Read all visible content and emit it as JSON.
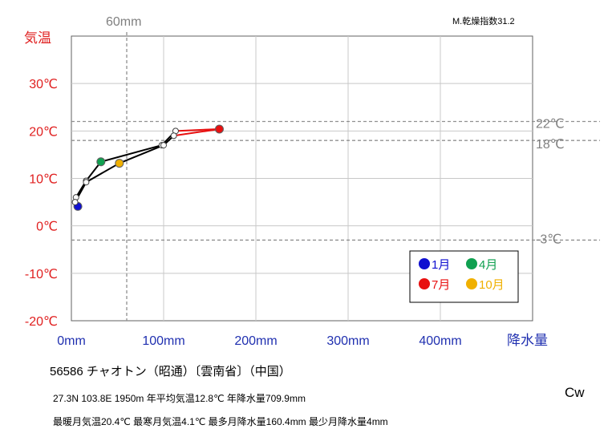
{
  "chart_data": {
    "type": "line",
    "title": "",
    "xlabel": "降水量",
    "ylabel": "気温",
    "xlim": [
      0,
      500
    ],
    "ylim": [
      -20,
      40
    ],
    "x_ticks": [
      "0mm",
      "100mm",
      "200mm",
      "300mm",
      "400mm"
    ],
    "x_tick_values": [
      0,
      100,
      200,
      300,
      400
    ],
    "y_ticks": [
      "30℃",
      "20℃",
      "10℃",
      "0℃",
      "-10℃",
      "-20℃"
    ],
    "y_tick_values": [
      30,
      20,
      10,
      0,
      -10,
      -20
    ],
    "grid": true,
    "aridity_label": "M.乾燥指数31.2",
    "reference_lines": {
      "vertical": [
        {
          "value": 60,
          "label": "60mm"
        }
      ],
      "horizontal": [
        {
          "value": 22,
          "label": "22℃"
        },
        {
          "value": 18,
          "label": "18℃"
        },
        {
          "value": -3,
          "label": "-3℃"
        }
      ]
    },
    "series": [
      {
        "points": [
          {
            "month": 1,
            "precip": 7,
            "temp": 4.1
          },
          {
            "month": 2,
            "precip": 5,
            "temp": 6.0
          },
          {
            "month": 3,
            "precip": 16,
            "temp": 9.5
          },
          {
            "month": 4,
            "precip": 32,
            "temp": 13.5
          },
          {
            "month": 5,
            "precip": 98,
            "temp": 17.0
          },
          {
            "month": 6,
            "precip": 113,
            "temp": 20.0
          },
          {
            "month": 7,
            "precip": 160.4,
            "temp": 20.4
          },
          {
            "month": 8,
            "precip": 111,
            "temp": 19.0
          },
          {
            "month": 9,
            "precip": 100,
            "temp": 17.0
          },
          {
            "month": 10,
            "precip": 52,
            "temp": 13.2
          },
          {
            "month": 11,
            "precip": 16,
            "temp": 9.2
          },
          {
            "month": 12,
            "precip": 4,
            "temp": 5.0
          }
        ]
      }
    ],
    "highlight_colors": {
      "1": "#1010d0",
      "4": "#10a050",
      "7": "#e81010",
      "10": "#f0b000"
    },
    "legend": {
      "placement": "bottom-right",
      "items": [
        {
          "label": "1月",
          "color": "#1010d0"
        },
        {
          "label": "4月",
          "color": "#10a050"
        },
        {
          "label": "7月",
          "color": "#e81010"
        },
        {
          "label": "10月",
          "color": "#f0b000"
        }
      ]
    }
  },
  "station": {
    "title": "56586  チャオトン（昭通）〔雲南省〕（中国）",
    "info_line1": "27.3N  103.8E 1950m  年平均気温12.8℃ 年降水量709.9mm",
    "info_line2": "最暖月気温20.4℃ 最寒月気温4.1℃ 最多月降水量160.4mm 最少月降水量4mm",
    "climate_code": "Cw"
  }
}
